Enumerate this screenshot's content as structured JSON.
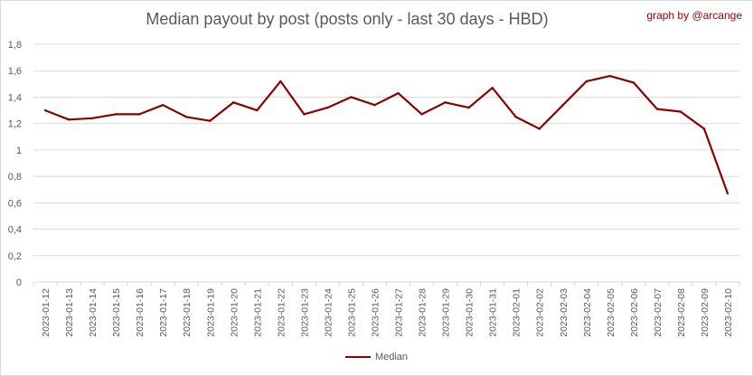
{
  "credit": "graph by @arcange",
  "colors": {
    "line": "#8b0000",
    "grid": "#d9d9d9",
    "axis_text": "#595959",
    "credit": "#a00000"
  },
  "chart_data": {
    "type": "line",
    "title": "Median payout by post (posts only - last 30 days - HBD)",
    "xlabel": "",
    "ylabel": "",
    "ylim": [
      0,
      1.8
    ],
    "y_ticks": [
      "0",
      "0,2",
      "0,4",
      "0,6",
      "0,8",
      "1",
      "1,2",
      "1,4",
      "1,6",
      "1,8"
    ],
    "grid": "horizontal",
    "legend_position": "bottom",
    "categories": [
      "2023-01-12",
      "2023-01-13",
      "2023-01-14",
      "2023-01-15",
      "2023-01-16",
      "2023-01-17",
      "2023-01-18",
      "2023-01-19",
      "2023-01-20",
      "2023-01-21",
      "2023-01-22",
      "2023-01-23",
      "2023-01-24",
      "2023-01-25",
      "2023-01-26",
      "2023-01-27",
      "2023-01-28",
      "2023-01-29",
      "2023-01-30",
      "2023-01-31",
      "2023-02-01",
      "2023-02-02",
      "2023-02-03",
      "2023-02-04",
      "2023-02-05",
      "2023-02-06",
      "2023-02-07",
      "2023-02-08",
      "2023-02-09",
      "2023-02-10"
    ],
    "series": [
      {
        "name": "Median",
        "values": [
          1.3,
          1.23,
          1.24,
          1.27,
          1.27,
          1.34,
          1.25,
          1.22,
          1.36,
          1.3,
          1.52,
          1.27,
          1.32,
          1.4,
          1.34,
          1.43,
          1.27,
          1.36,
          1.32,
          1.47,
          1.25,
          1.16,
          1.34,
          1.52,
          1.56,
          1.51,
          1.31,
          1.29,
          1.16,
          0.67
        ]
      }
    ]
  }
}
